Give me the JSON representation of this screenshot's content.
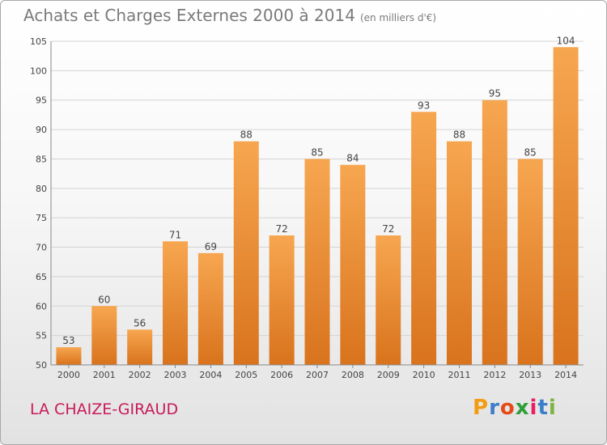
{
  "header": {
    "title": "Achats et Charges Externes 2000 à 2014",
    "unit": "(en milliers d'€)"
  },
  "footer": {
    "city": "LA CHAIZE-GIRAUD",
    "logo": {
      "letters": [
        "P",
        "r",
        "o",
        "x",
        "i",
        "t",
        "i"
      ],
      "colors": [
        "#f39c12",
        "#3b7ec9",
        "#e64a19",
        "#2e9e3a",
        "#e91e63",
        "#3b7ec9",
        "#7cb342"
      ]
    }
  },
  "chart_data": {
    "type": "bar",
    "title": "Achats et Charges Externes 2000 à 2014",
    "subtitle": "(en milliers d'€)",
    "xlabel": "",
    "ylabel": "",
    "categories": [
      "2000",
      "2001",
      "2002",
      "2003",
      "2004",
      "2005",
      "2006",
      "2007",
      "2008",
      "2009",
      "2010",
      "2011",
      "2012",
      "2013",
      "2014"
    ],
    "values": [
      53,
      60,
      56,
      71,
      69,
      88,
      72,
      85,
      84,
      72,
      93,
      88,
      95,
      85,
      104
    ],
    "ylim": [
      50,
      105
    ],
    "yticks": [
      50,
      55,
      60,
      65,
      70,
      75,
      80,
      85,
      90,
      95,
      100,
      105
    ],
    "grid": true,
    "legend": "none",
    "colors": {
      "bar_light": "#f7a650",
      "bar_dark": "#d9731d",
      "grid": "#d4d4d4",
      "axis": "#888888"
    }
  }
}
